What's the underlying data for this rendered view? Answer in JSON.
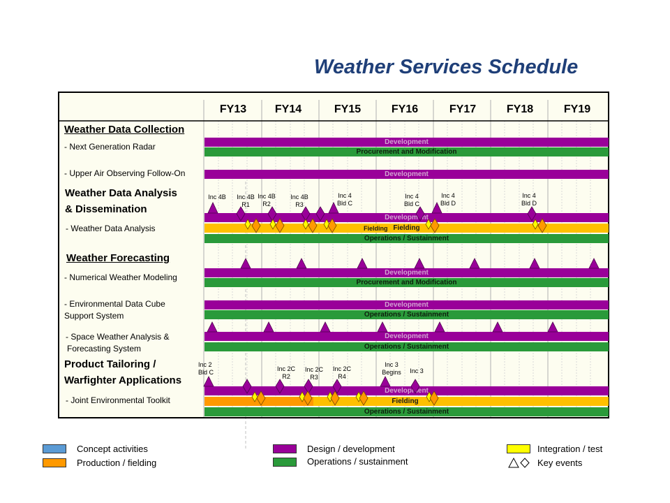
{
  "title": "Weather Services Schedule",
  "fiscal_years": [
    "FY13",
    "FY14",
    "FY15",
    "FY16",
    "FY17",
    "FY18",
    "FY19"
  ],
  "sections": [
    {
      "label": "Weather Data Collection"
    },
    {
      "label": "Weather Data Analysis",
      "label2": "& Dissemination"
    },
    {
      "label": "Weather Forecasting"
    },
    {
      "label": "Product Tailoring /",
      "label2": "Warfighter Applications"
    }
  ],
  "programs": [
    {
      "label": "- Next Generation Radar"
    },
    {
      "label": "- Upper Air Observing Follow-On"
    },
    {
      "label": "- Weather Data Analysis"
    },
    {
      "label": "- Numerical Weather Modeling"
    },
    {
      "label": "- Environmental Data Cube",
      "label2": "Support System"
    },
    {
      "label": "- Space Weather Analysis &",
      "label2": "Forecasting System"
    },
    {
      "label": "- Joint Environmental Toolkit"
    }
  ],
  "bar_labels": {
    "development": "Development",
    "procurement": "Procurement and Modification",
    "operations": "Operations / Sustainment",
    "fielding": "Fielding"
  },
  "event_labels": {
    "wda": [
      {
        "l1": "Inc 4B",
        "l2": ""
      },
      {
        "l1": "Inc 4B",
        "l2": "R1"
      },
      {
        "l1": "Inc 4B",
        "l2": "R2"
      },
      {
        "l1": "Inc 4B",
        "l2": "R3"
      },
      {
        "l1": "Inc 4",
        "l2": "Bld C"
      },
      {
        "l1": "Inc 4",
        "l2": "Bld C"
      },
      {
        "l1": "Inc 4",
        "l2": "Bld D"
      },
      {
        "l1": "Inc 4",
        "l2": "Bld D"
      }
    ],
    "jet": [
      {
        "l1": "Inc 2",
        "l2": "Bld C"
      },
      {
        "l1": "Inc 2C",
        "l2": "R2"
      },
      {
        "l1": "Inc 2C",
        "l2": "R3"
      },
      {
        "l1": "Inc 2C",
        "l2": "R4"
      },
      {
        "l1": "Inc 3",
        "l2": "Begins"
      },
      {
        "l1": "Inc 3",
        "l2": ""
      }
    ]
  },
  "legend": {
    "concept": "Concept activities",
    "production": "Production  / fielding",
    "design": "Design / development",
    "operations": "Operations / sustainment",
    "integration": "Integration / test",
    "key_events": "Key events"
  },
  "colors": {
    "development": "#990099",
    "operations": "#2a9a3a",
    "fielding": "#ffc000",
    "production": "#ff9900",
    "concept": "#5b9bd5",
    "integration": "#ffff00",
    "title": "#1f3f78"
  }
}
